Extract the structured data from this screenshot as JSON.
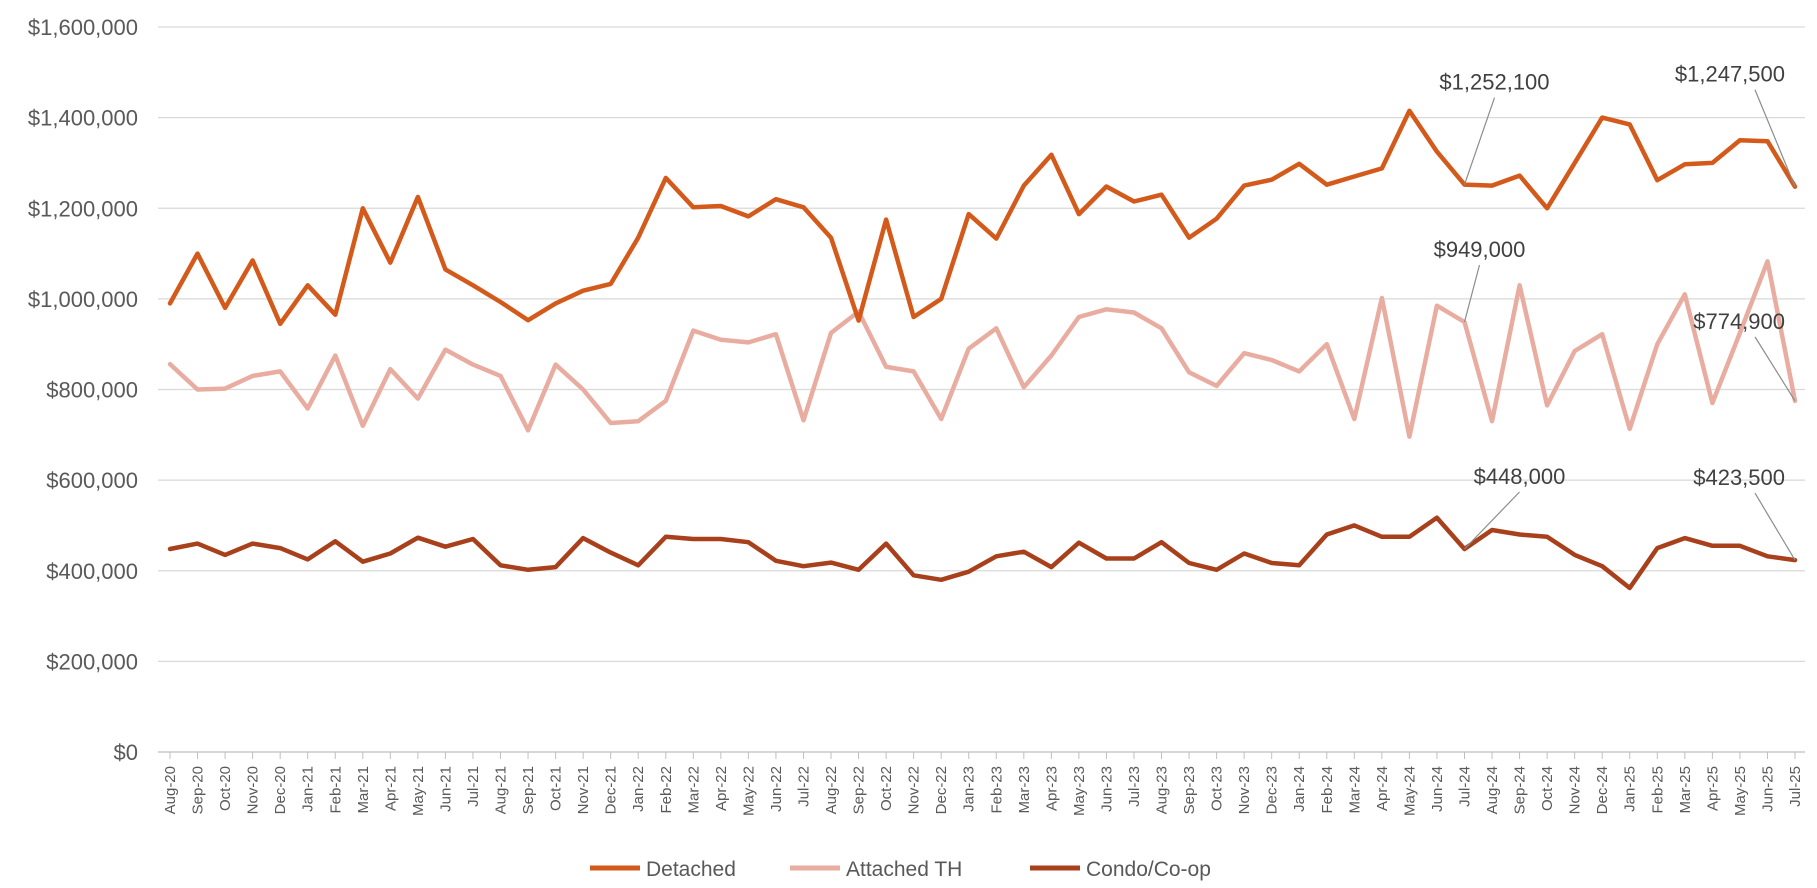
{
  "chart_data": {
    "type": "line",
    "title": "",
    "xlabel": "",
    "ylabel": "",
    "ylim": [
      0,
      1600000
    ],
    "yticks": [
      0,
      200000,
      400000,
      600000,
      800000,
      1000000,
      1200000,
      1400000,
      1600000
    ],
    "ytick_labels": [
      "$0",
      "$200,000",
      "$400,000",
      "$600,000",
      "$800,000",
      "$1,000,000",
      "$1,200,000",
      "$1,400,000",
      "$1,600,000"
    ],
    "grid": true,
    "legend_position": "bottom",
    "categories": [
      "Aug-20",
      "Sep-20",
      "Oct-20",
      "Nov-20",
      "Dec-20",
      "Jan-21",
      "Feb-21",
      "Mar-21",
      "Apr-21",
      "May-21",
      "Jun-21",
      "Jul-21",
      "Aug-21",
      "Sep-21",
      "Oct-21",
      "Nov-21",
      "Dec-21",
      "Jan-22",
      "Feb-22",
      "Mar-22",
      "Apr-22",
      "May-22",
      "Jun-22",
      "Jul-22",
      "Aug-22",
      "Sep-22",
      "Oct-22",
      "Nov-22",
      "Dec-22",
      "Jan-23",
      "Feb-23",
      "Mar-23",
      "Apr-23",
      "May-23",
      "Jun-23",
      "Jul-23",
      "Aug-23",
      "Sep-23",
      "Oct-23",
      "Nov-23",
      "Dec-23",
      "Jan-24",
      "Feb-24",
      "Mar-24",
      "Apr-24",
      "May-24",
      "Jun-24",
      "Jul-24",
      "Aug-24",
      "Sep-24",
      "Oct-24",
      "Nov-24",
      "Dec-24",
      "Jan-25",
      "Feb-25",
      "Mar-25",
      "Apr-25",
      "May-25",
      "Jun-25",
      "Jul-25"
    ],
    "series": [
      {
        "name": "Detached",
        "color": "#D35A1A",
        "values": [
          990000,
          1100000,
          980000,
          1085000,
          945000,
          1030000,
          965000,
          1200000,
          1080000,
          1225000,
          1065000,
          1030000,
          993000,
          953000,
          990000,
          1018000,
          1033000,
          1135000,
          1267000,
          1202000,
          1205000,
          1182000,
          1220000,
          1202000,
          1135000,
          952000,
          1175000,
          960000,
          1000000,
          1187000,
          1133000,
          1250000,
          1318000,
          1187000,
          1248000,
          1215000,
          1230000,
          1135000,
          1177000,
          1250000,
          1263000,
          1298000,
          1252000,
          1270000,
          1288000,
          1415000,
          1325000,
          1252100,
          1250000,
          1272000,
          1200000,
          1300000,
          1400000,
          1385000,
          1262000,
          1297000,
          1300000,
          1350000,
          1348000,
          1247500
        ]
      },
      {
        "name": "Attached TH",
        "color": "#E8ADA0",
        "values": [
          856000,
          800000,
          802000,
          830000,
          840000,
          758000,
          875000,
          720000,
          845000,
          780000,
          888000,
          855000,
          830000,
          710000,
          855000,
          800000,
          726000,
          730000,
          775000,
          930000,
          910000,
          904000,
          922000,
          732000,
          925000,
          972000,
          850000,
          840000,
          735000,
          890000,
          935000,
          805000,
          875000,
          960000,
          977000,
          970000,
          935000,
          838000,
          808000,
          880000,
          865000,
          840000,
          900000,
          735000,
          1002000,
          696000,
          985000,
          949000,
          730000,
          1030000,
          765000,
          885000,
          922000,
          713000,
          900000,
          1010000,
          770000,
          925000,
          1083000,
          774900
        ]
      },
      {
        "name": "Condo/Co-op",
        "color": "#A8401B",
        "values": [
          448000,
          460000,
          435000,
          460000,
          450000,
          425000,
          465000,
          420000,
          438000,
          473000,
          453000,
          470000,
          412000,
          402000,
          408000,
          472000,
          440000,
          412000,
          475000,
          470000,
          470000,
          463000,
          422000,
          410000,
          418000,
          402000,
          460000,
          390000,
          380000,
          398000,
          432000,
          442000,
          408000,
          462000,
          427000,
          427000,
          463000,
          417000,
          402000,
          438000,
          417000,
          412000,
          480000,
          500000,
          475000,
          475000,
          517000,
          448000,
          490000,
          480000,
          475000,
          435000,
          410000,
          362000,
          450000,
          472000,
          455000,
          455000,
          432000,
          423500
        ]
      }
    ],
    "annotations": [
      {
        "series": "Detached",
        "category": "Jul-24",
        "text": "$1,252,100"
      },
      {
        "series": "Detached",
        "category": "Jul-25",
        "text": "$1,247,500"
      },
      {
        "series": "Attached TH",
        "category": "Jul-24",
        "text": "$949,000"
      },
      {
        "series": "Attached TH",
        "category": "Jul-25",
        "text": "$774,900"
      },
      {
        "series": "Condo/Co-op",
        "category": "Jul-24",
        "text": "$448,000"
      },
      {
        "series": "Condo/Co-op",
        "category": "Jul-25",
        "text": "$423,500"
      }
    ]
  },
  "colors": {
    "grid": "#d9d9d9",
    "axis": "#bfbfbf",
    "leader": "#8c8c8c"
  }
}
